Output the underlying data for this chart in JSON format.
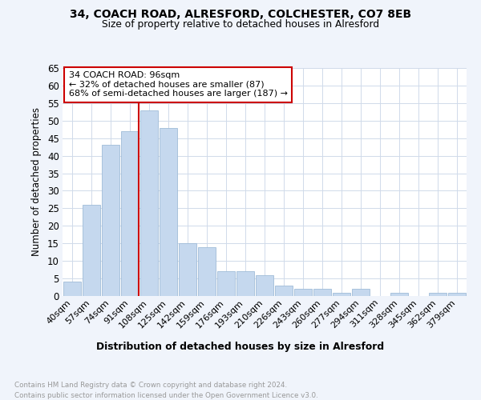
{
  "title1": "34, COACH ROAD, ALRESFORD, COLCHESTER, CO7 8EB",
  "title2": "Size of property relative to detached houses in Alresford",
  "xlabel": "Distribution of detached houses by size in Alresford",
  "ylabel": "Number of detached properties",
  "categories": [
    "40sqm",
    "57sqm",
    "74sqm",
    "91sqm",
    "108sqm",
    "125sqm",
    "142sqm",
    "159sqm",
    "176sqm",
    "193sqm",
    "210sqm",
    "226sqm",
    "243sqm",
    "260sqm",
    "277sqm",
    "294sqm",
    "311sqm",
    "328sqm",
    "345sqm",
    "362sqm",
    "379sqm"
  ],
  "values": [
    4,
    26,
    43,
    47,
    53,
    48,
    15,
    14,
    7,
    7,
    6,
    3,
    2,
    2,
    1,
    2,
    0,
    1,
    0,
    1,
    1
  ],
  "bar_color": "#c5d8ee",
  "bar_edge_color": "#a0bcd8",
  "property_bin_index": 3,
  "annotation_title": "34 COACH ROAD: 96sqm",
  "annotation_line1": "← 32% of detached houses are smaller (87)",
  "annotation_line2": "68% of semi-detached houses are larger (187) →",
  "vline_color": "#cc0000",
  "ylim": [
    0,
    65
  ],
  "yticks": [
    0,
    5,
    10,
    15,
    20,
    25,
    30,
    35,
    40,
    45,
    50,
    55,
    60,
    65
  ],
  "footer_text": "Contains HM Land Registry data © Crown copyright and database right 2024.\nContains public sector information licensed under the Open Government Licence v3.0.",
  "background_color": "#f0f4fb",
  "plot_bg_color": "#ffffff",
  "grid_color": "#d0daea"
}
